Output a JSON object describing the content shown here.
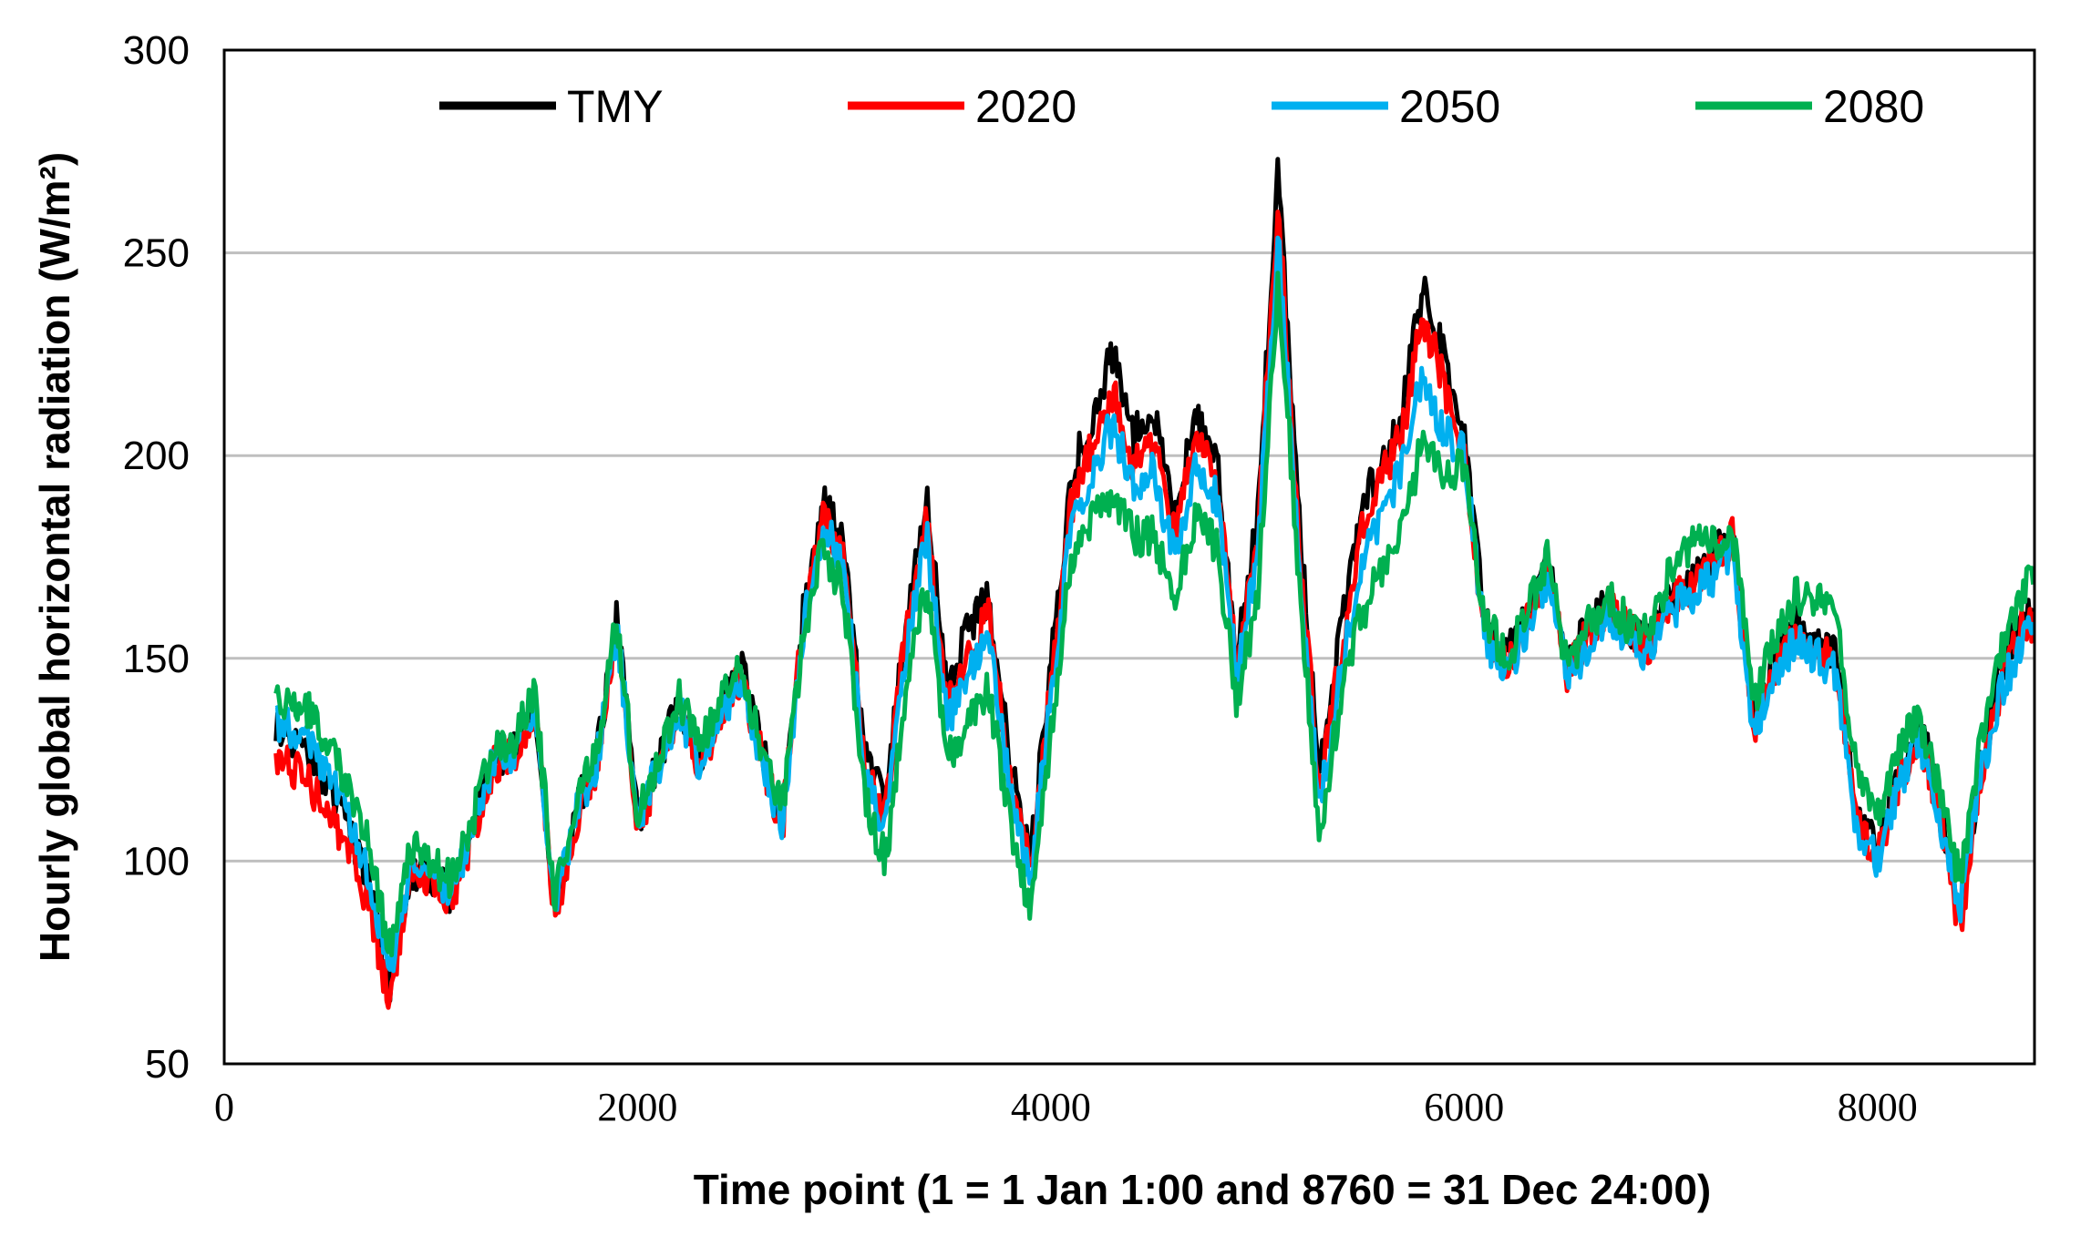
{
  "chart_data": {
    "type": "line",
    "title": "",
    "xlabel": "Time point (1 = 1 Jan 1:00 and 8760 = 31 Dec 24:00)",
    "ylabel": "Hourly global horizontal radiation (W/m²)",
    "xlim": [
      0,
      8760
    ],
    "ylim": [
      50,
      300
    ],
    "x_ticks": [
      0,
      2000,
      4000,
      6000,
      8000
    ],
    "y_ticks": [
      50,
      100,
      150,
      200,
      250,
      300
    ],
    "grid": "horizontal",
    "legend": "top",
    "x": [
      250,
      400,
      550,
      700,
      800,
      900,
      1000,
      1100,
      1200,
      1300,
      1400,
      1500,
      1600,
      1700,
      1800,
      1900,
      2000,
      2100,
      2200,
      2300,
      2400,
      2500,
      2600,
      2700,
      2800,
      2900,
      3000,
      3100,
      3200,
      3300,
      3400,
      3500,
      3600,
      3700,
      3800,
      3900,
      4000,
      4100,
      4200,
      4300,
      4400,
      4500,
      4600,
      4700,
      4800,
      4900,
      5000,
      5100,
      5200,
      5300,
      5400,
      5500,
      5600,
      5700,
      5800,
      5900,
      6000,
      6100,
      6200,
      6300,
      6400,
      6500,
      6600,
      6700,
      6800,
      6900,
      7000,
      7100,
      7200,
      7300,
      7400,
      7500,
      7600,
      7700,
      7800,
      7900,
      8000,
      8100,
      8200,
      8300,
      8400,
      8500,
      8600,
      8700,
      8760
    ],
    "series": [
      {
        "name": "TMY",
        "color": "#000000",
        "values": [
          132,
          125,
          115,
          95,
          70,
          98,
          97,
          92,
          108,
          125,
          128,
          140,
          88,
          112,
          125,
          160,
          110,
          125,
          140,
          125,
          138,
          148,
          128,
          110,
          160,
          188,
          178,
          125,
          115,
          160,
          190,
          140,
          158,
          165,
          125,
          100,
          148,
          195,
          210,
          225,
          205,
          210,
          185,
          210,
          200,
          150,
          185,
          270,
          185,
          120,
          155,
          185,
          200,
          210,
          242,
          225,
          205,
          158,
          150,
          160,
          175,
          148,
          158,
          165,
          158,
          155,
          165,
          170,
          175,
          182,
          135,
          150,
          158,
          155,
          150,
          112,
          102,
          122,
          135,
          115,
          85,
          125,
          148,
          162,
          165
        ]
      },
      {
        "name": "2020",
        "color": "#ff0000",
        "values": [
          127,
          120,
          108,
          90,
          65,
          96,
          95,
          90,
          106,
          123,
          126,
          138,
          86,
          110,
          123,
          158,
          108,
          122,
          138,
          123,
          136,
          145,
          126,
          108,
          158,
          185,
          175,
          122,
          112,
          157,
          185,
          137,
          153,
          160,
          122,
          97,
          144,
          188,
          202,
          216,
          198,
          203,
          180,
          204,
          195,
          147,
          180,
          262,
          180,
          117,
          150,
          180,
          195,
          205,
          235,
          218,
          200,
          156,
          148,
          158,
          172,
          146,
          156,
          163,
          156,
          153,
          163,
          168,
          173,
          180,
          133,
          148,
          156,
          153,
          148,
          109,
          100,
          119,
          132,
          112,
          83,
          121,
          144,
          158,
          158
        ]
      },
      {
        "name": "2050",
        "color": "#00b0f0",
        "values": [
          135,
          130,
          118,
          98,
          72,
          99,
          97,
          91,
          107,
          124,
          127,
          139,
          88,
          112,
          124,
          158,
          109,
          123,
          138,
          124,
          136,
          145,
          126,
          109,
          157,
          183,
          172,
          120,
          108,
          153,
          180,
          134,
          148,
          155,
          118,
          95,
          140,
          183,
          196,
          208,
          192,
          196,
          175,
          198,
          190,
          145,
          175,
          255,
          176,
          113,
          145,
          172,
          186,
          196,
          222,
          205,
          202,
          155,
          146,
          156,
          170,
          144,
          154,
          161,
          154,
          151,
          161,
          166,
          170,
          178,
          131,
          146,
          154,
          151,
          146,
          107,
          100,
          118,
          130,
          110,
          88,
          122,
          142,
          154,
          160
        ]
      },
      {
        "name": "2080",
        "color": "#00b050",
        "values": [
          140,
          138,
          125,
          105,
          78,
          103,
          100,
          95,
          110,
          127,
          130,
          142,
          91,
          115,
          127,
          160,
          112,
          126,
          141,
          127,
          139,
          147,
          129,
          112,
          155,
          178,
          165,
          115,
          100,
          143,
          168,
          125,
          135,
          142,
          110,
          88,
          130,
          175,
          185,
          190,
          180,
          180,
          165,
          185,
          178,
          140,
          165,
          245,
          170,
          105,
          140,
          160,
          172,
          180,
          205,
          195,
          198,
          160,
          150,
          160,
          175,
          148,
          158,
          165,
          158,
          157,
          172,
          178,
          178,
          182,
          138,
          155,
          165,
          165,
          160,
          120,
          110,
          128,
          135,
          118,
          95,
          130,
          152,
          165,
          172
        ]
      }
    ]
  }
}
